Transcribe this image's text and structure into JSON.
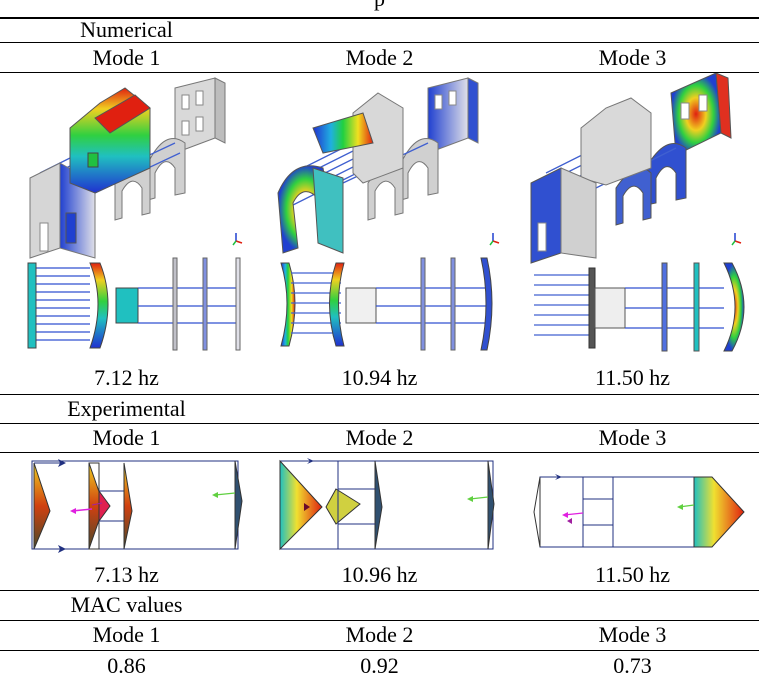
{
  "table_caption_fragment": "p",
  "numerical": {
    "section_label": "Numerical",
    "modes": [
      "Mode 1",
      "Mode 2",
      "Mode 3"
    ],
    "frequencies": [
      "7.12 hz",
      "10.94 hz",
      "11.50 hz"
    ],
    "figures": [
      "isometric-mode-shape-1",
      "isometric-mode-shape-2",
      "isometric-mode-shape-3"
    ]
  },
  "experimental": {
    "section_label": "Experimental",
    "modes": [
      "Mode 1",
      "Mode 2",
      "Mode 3"
    ],
    "frequencies": [
      "7.13 hz",
      "10.96 hz",
      "11.50 hz"
    ]
  },
  "mac": {
    "section_label": "MAC values",
    "modes": [
      "Mode 1",
      "Mode 2",
      "Mode 3"
    ],
    "values": [
      "0.86",
      "0.92",
      "0.73"
    ]
  },
  "colors": {
    "accent_red": "#e02010",
    "accent_green": "#20c040",
    "accent_blue": "#2040d0",
    "structure_gray": "#d8d8d8"
  }
}
